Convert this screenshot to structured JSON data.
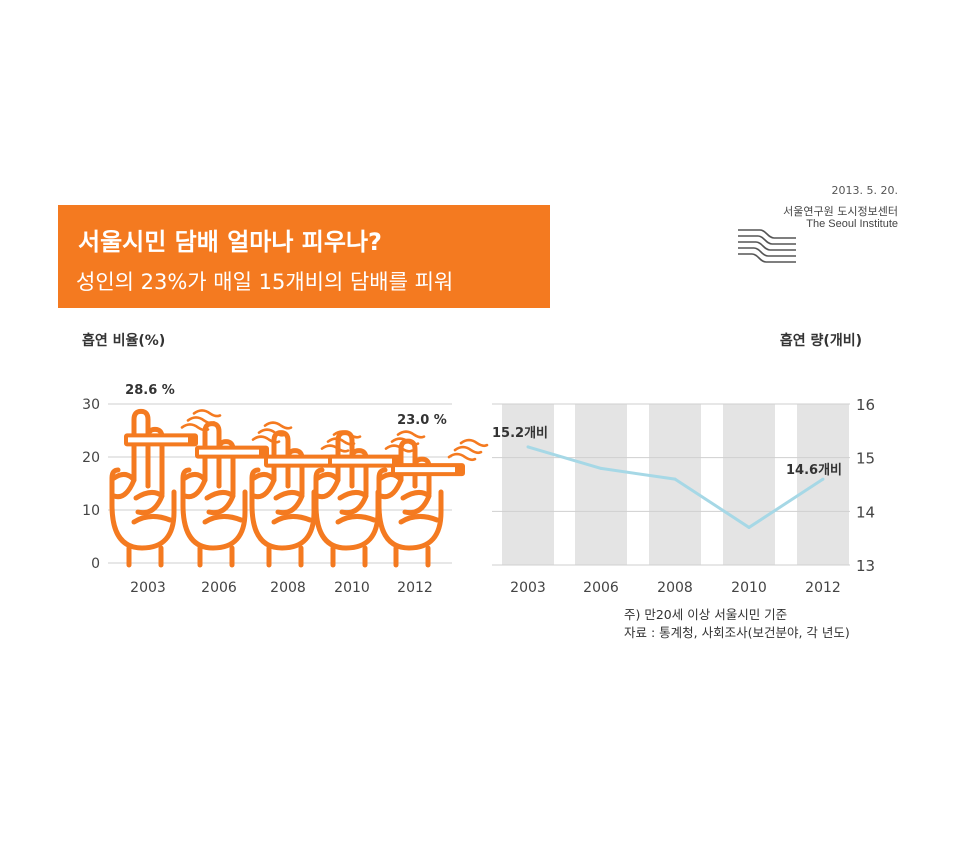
{
  "header": {
    "date": "2013. 5. 20.",
    "institute_ko": "서울연구원 도시정보센터",
    "institute_en": "The Seoul Institute",
    "logo_icon": "seoul-institute-logo-icon"
  },
  "banner": {
    "title": "서울시민 담배 얼마나 피우나?",
    "subtitle": "성인의 23%가 매일 15개비의 담배를 피워",
    "color": "#f47a20"
  },
  "notes": {
    "line1": "주) 만20세 이상 서울시민 기준",
    "line2": "자료 : 통계청, 사회조사(보건분야, 각 년도)"
  },
  "chart_data": [
    {
      "type": "bar",
      "ylabel": "흡연 비율(%)",
      "categories": [
        "2003",
        "2006",
        "2008",
        "2010",
        "2012"
      ],
      "values": [
        28.6,
        26.3,
        24.6,
        24.6,
        23.0
      ],
      "ylim": [
        0,
        30
      ],
      "yticks": [
        "0",
        "10",
        "20",
        "30"
      ],
      "data_labels": {
        "first": "28.6 %",
        "last": "23.0 %"
      },
      "grid": true,
      "color": "#f47a20",
      "mark_icon": "hand-holding-cigarette-icon"
    },
    {
      "type": "line",
      "ylabel": "흡연 량(개비)",
      "x": [
        "2003",
        "2006",
        "2008",
        "2010",
        "2012"
      ],
      "values": [
        15.2,
        14.8,
        14.6,
        13.7,
        14.6
      ],
      "ylim": [
        13,
        16
      ],
      "yticks": [
        "13",
        "14",
        "15",
        "16"
      ],
      "data_labels": {
        "first": "15.2개비",
        "last": "14.6개비"
      },
      "grid": true,
      "color": "#a6d8e6",
      "band_color": "#e4e4e4"
    }
  ]
}
